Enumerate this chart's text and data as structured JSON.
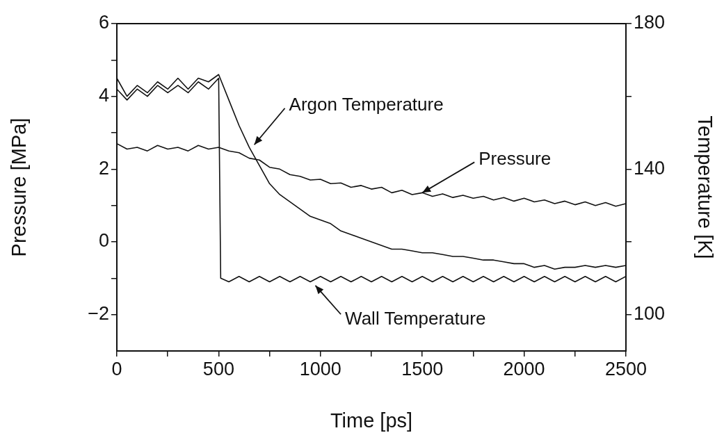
{
  "chart_data": {
    "type": "line",
    "xlabel": "Time [ps]",
    "ylabel": "Pressure [MPa]",
    "y2label": "Temperature [K]",
    "xlim": [
      0,
      2500
    ],
    "xticks": [
      0,
      {
        "value": 250,
        "label": null
      },
      500,
      {
        "value": 750,
        "label": null
      },
      1000,
      {
        "value": 1250,
        "label": null
      },
      1500,
      {
        "value": 1750,
        "label": null
      },
      2000,
      {
        "value": 2250,
        "label": null
      },
      2500
    ],
    "ylim": [
      -3,
      6
    ],
    "yticks": [
      {
        "value": -2,
        "label": "−2"
      },
      {
        "value": -1,
        "label": null
      },
      0,
      {
        "value": 1,
        "label": null
      },
      2,
      {
        "value": 3,
        "label": null
      },
      4,
      {
        "value": 5,
        "label": null
      },
      6
    ],
    "y2lim": [
      90,
      180
    ],
    "y2ticks": [
      100,
      {
        "value": 120,
        "label": null
      },
      140,
      {
        "value": 160,
        "label": null
      },
      180
    ],
    "grid": false,
    "legend": false,
    "marker": "none",
    "line_style": "solid",
    "series": [
      {
        "color": "#111111",
        "x": [
          0,
          50,
          100,
          150,
          200,
          250,
          300,
          350,
          400,
          450,
          500,
          550,
          600,
          650,
          700,
          750,
          800,
          850,
          900,
          950,
          1000,
          1050,
          1100,
          1150,
          1200,
          1250,
          1300,
          1350,
          1400,
          1450,
          1500,
          1550,
          1600,
          1650,
          1700,
          1750,
          1800,
          1850,
          1900,
          1950,
          2000,
          2050,
          2100,
          2150,
          2200,
          2250,
          2300,
          2350,
          2400,
          2450,
          2500
        ],
        "values": [
          2.7,
          2.55,
          2.6,
          2.5,
          2.65,
          2.55,
          2.6,
          2.5,
          2.65,
          2.55,
          2.6,
          2.5,
          2.45,
          2.3,
          2.25,
          2.05,
          2.0,
          1.85,
          1.8,
          1.7,
          1.72,
          1.6,
          1.62,
          1.5,
          1.55,
          1.45,
          1.5,
          1.35,
          1.42,
          1.3,
          1.35,
          1.25,
          1.32,
          1.22,
          1.28,
          1.2,
          1.25,
          1.15,
          1.22,
          1.12,
          1.2,
          1.1,
          1.15,
          1.05,
          1.12,
          1.02,
          1.1,
          1.0,
          1.08,
          0.98,
          1.05
        ]
      },
      {
        "color": "#111111",
        "axis": "y2",
        "x": [
          0,
          50,
          100,
          150,
          200,
          250,
          300,
          350,
          400,
          450,
          500,
          550,
          600,
          650,
          700,
          750,
          800,
          850,
          900,
          950,
          1000,
          1050,
          1100,
          1150,
          1200,
          1250,
          1300,
          1350,
          1400,
          1450,
          1500,
          1550,
          1600,
          1650,
          1700,
          1750,
          1800,
          1850,
          1900,
          1950,
          2000,
          2050,
          2100,
          2150,
          2200,
          2250,
          2300,
          2350,
          2400,
          2450,
          2500
        ],
        "values": [
          165,
          160,
          163,
          161,
          164,
          162,
          165,
          162,
          165,
          164,
          166,
          159,
          152,
          146,
          141,
          136,
          133,
          131,
          129,
          127,
          126,
          125,
          123,
          122,
          121,
          120,
          119,
          118,
          118,
          117.5,
          117,
          117,
          116.5,
          116,
          116,
          115.5,
          115,
          115,
          114.5,
          114,
          114,
          113,
          113.5,
          112.5,
          113,
          113,
          113.5,
          113,
          113.5,
          113,
          113.5
        ]
      },
      {
        "color": "#111111",
        "axis": "y2",
        "x": [
          0,
          50,
          100,
          150,
          200,
          250,
          300,
          350,
          400,
          450,
          500,
          510,
          550,
          600,
          650,
          700,
          750,
          800,
          850,
          900,
          950,
          1000,
          1050,
          1100,
          1150,
          1200,
          1250,
          1300,
          1350,
          1400,
          1450,
          1500,
          1550,
          1600,
          1650,
          1700,
          1750,
          1800,
          1850,
          1900,
          1950,
          2000,
          2050,
          2100,
          2150,
          2200,
          2250,
          2300,
          2350,
          2400,
          2450,
          2500
        ],
        "values": [
          162,
          159,
          162,
          160,
          163,
          161,
          163,
          161,
          164,
          162,
          165,
          110,
          109,
          110.5,
          109,
          110.5,
          109,
          110.5,
          109,
          110.5,
          109,
          110.5,
          109,
          110.5,
          109,
          110.5,
          109,
          110.5,
          109,
          110.5,
          109,
          110.5,
          109,
          110.5,
          109,
          110.5,
          109,
          110.5,
          109,
          110.5,
          109,
          110.5,
          109,
          110.5,
          109,
          110.5,
          109,
          110.5,
          109,
          110.5,
          109,
          110.5
        ]
      }
    ],
    "annotations": [
      "Argon Temperature",
      {
        "text": "Pressure",
        "x": 1500,
        "y": 1.35
      },
      "Wall Temperature"
    ]
  }
}
